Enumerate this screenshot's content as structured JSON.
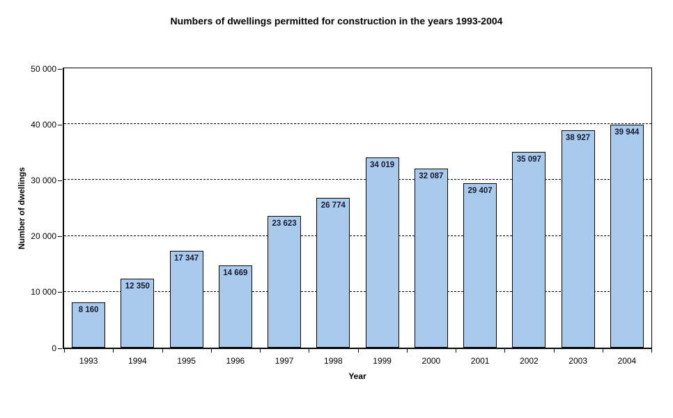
{
  "chart_data": {
    "type": "bar",
    "title": "Numbers of dwellings permitted for construction in the years 1993-2004",
    "xlabel": "Year",
    "ylabel": "Number of dwellings",
    "categories": [
      "1993",
      "1994",
      "1995",
      "1996",
      "1997",
      "1998",
      "1999",
      "2000",
      "2001",
      "2002",
      "2003",
      "2004"
    ],
    "values": [
      8160,
      12350,
      17347,
      14669,
      23623,
      26774,
      34019,
      32087,
      29407,
      35097,
      38927,
      39944
    ],
    "value_labels": [
      "8 160",
      "12 350",
      "17 347",
      "14 669",
      "23 623",
      "26 774",
      "34 019",
      "32 087",
      "29 407",
      "35 097",
      "38 927",
      "39 944"
    ],
    "ylim": [
      0,
      50000
    ],
    "ytick_values": [
      0,
      10000,
      20000,
      30000,
      40000,
      50000
    ],
    "ytick_labels": [
      "0",
      "10 000",
      "20 000",
      "30 000",
      "40 000",
      "50 000"
    ],
    "grid": "horizontal-dashed",
    "legend": "none",
    "colors": {
      "bar_fill": "#A8CAEC",
      "bar_border": "#000000",
      "value_label": "#1A1A2E",
      "axis": "#000000",
      "background": "#FFFFFF"
    }
  }
}
